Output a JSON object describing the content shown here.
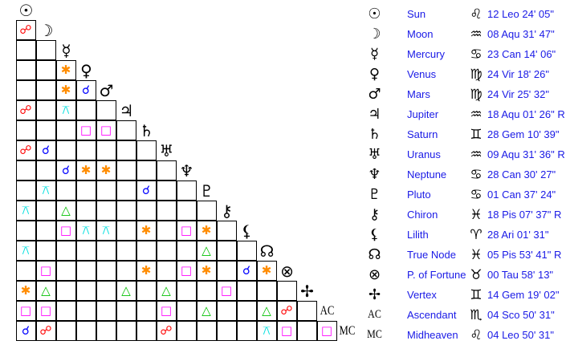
{
  "planets": [
    {
      "name": "Sun",
      "glyph": "☉",
      "sign_glyph": "♌",
      "position": "12 Leo 24' 05\""
    },
    {
      "name": "Moon",
      "glyph": "☽",
      "sign_glyph": "♒",
      "position": "08 Aqu 31' 47\""
    },
    {
      "name": "Mercury",
      "glyph": "☿",
      "sign_glyph": "♋",
      "position": "23 Can 14' 06\""
    },
    {
      "name": "Venus",
      "glyph": "♀",
      "sign_glyph": "♍",
      "position": "24 Vir 18' 26\""
    },
    {
      "name": "Mars",
      "glyph": "♂",
      "sign_glyph": "♍",
      "position": "24 Vir 25' 32\""
    },
    {
      "name": "Jupiter",
      "glyph": "♃",
      "sign_glyph": "♒",
      "position": "18 Aqu 01' 26\" R"
    },
    {
      "name": "Saturn",
      "glyph": "♄",
      "sign_glyph": "♊",
      "position": "28 Gem 10' 39\""
    },
    {
      "name": "Uranus",
      "glyph": "♅",
      "sign_glyph": "♒",
      "position": "09 Aqu 31' 36\" R"
    },
    {
      "name": "Neptune",
      "glyph": "♆",
      "sign_glyph": "♋",
      "position": "28 Can 30' 27\""
    },
    {
      "name": "Pluto",
      "glyph": "♇",
      "sign_glyph": "♋",
      "position": "01 Can 37' 24\""
    },
    {
      "name": "Chiron",
      "glyph": "⚷",
      "sign_glyph": "♓",
      "position": "18 Pis 07' 37\" R"
    },
    {
      "name": "Lilith",
      "glyph": "⚸",
      "sign_glyph": "♈",
      "position": "28 Ari 01' 31\""
    },
    {
      "name": "True Node",
      "glyph": "☊",
      "sign_glyph": "♓",
      "position": "05 Pis 53' 41\" R"
    },
    {
      "name": "P. of Fortune",
      "glyph": "⊗",
      "sign_glyph": "♉",
      "position": "00 Tau 58' 13\""
    },
    {
      "name": "Vertex",
      "glyph": "✢",
      "sign_glyph": "♊",
      "position": "14 Gem 19' 02\""
    },
    {
      "name": "Ascendant",
      "glyph": "AC",
      "sign_glyph": "♏",
      "position": "04 Sco 50' 31\""
    },
    {
      "name": "Midheaven",
      "glyph": "MC",
      "sign_glyph": "♌",
      "position": "04 Leo 50' 31\""
    }
  ],
  "aspect_types": {
    "opposition": {
      "glyph": "☍",
      "color": "#ff0000"
    },
    "conjunction": {
      "glyph": "☌",
      "color": "#0000ff"
    },
    "sextile": {
      "glyph": "✱",
      "color": "#ff8c00"
    },
    "square": {
      "glyph": "□",
      "color": "#ff00ff"
    },
    "trine": {
      "glyph": "△",
      "color": "#00c000"
    },
    "quincunx": {
      "glyph": "⚻",
      "color": "#00e0e0"
    }
  },
  "aspects": [
    {
      "row": 1,
      "col": 0,
      "type": "opposition"
    },
    {
      "row": 3,
      "col": 2,
      "type": "sextile"
    },
    {
      "row": 4,
      "col": 2,
      "type": "sextile"
    },
    {
      "row": 4,
      "col": 3,
      "type": "conjunction"
    },
    {
      "row": 5,
      "col": 0,
      "type": "opposition"
    },
    {
      "row": 5,
      "col": 2,
      "type": "quincunx"
    },
    {
      "row": 6,
      "col": 3,
      "type": "square"
    },
    {
      "row": 6,
      "col": 4,
      "type": "square"
    },
    {
      "row": 7,
      "col": 0,
      "type": "opposition"
    },
    {
      "row": 7,
      "col": 1,
      "type": "conjunction"
    },
    {
      "row": 8,
      "col": 2,
      "type": "conjunction"
    },
    {
      "row": 8,
      "col": 3,
      "type": "sextile"
    },
    {
      "row": 8,
      "col": 4,
      "type": "sextile"
    },
    {
      "row": 9,
      "col": 1,
      "type": "quincunx"
    },
    {
      "row": 9,
      "col": 6,
      "type": "conjunction"
    },
    {
      "row": 10,
      "col": 0,
      "type": "quincunx"
    },
    {
      "row": 10,
      "col": 2,
      "type": "trine"
    },
    {
      "row": 11,
      "col": 2,
      "type": "square"
    },
    {
      "row": 11,
      "col": 3,
      "type": "quincunx"
    },
    {
      "row": 11,
      "col": 4,
      "type": "quincunx"
    },
    {
      "row": 11,
      "col": 6,
      "type": "sextile"
    },
    {
      "row": 11,
      "col": 8,
      "type": "square"
    },
    {
      "row": 11,
      "col": 9,
      "type": "sextile"
    },
    {
      "row": 12,
      "col": 0,
      "type": "quincunx"
    },
    {
      "row": 12,
      "col": 9,
      "type": "trine"
    },
    {
      "row": 13,
      "col": 1,
      "type": "square"
    },
    {
      "row": 13,
      "col": 6,
      "type": "sextile"
    },
    {
      "row": 13,
      "col": 8,
      "type": "square"
    },
    {
      "row": 13,
      "col": 9,
      "type": "sextile"
    },
    {
      "row": 13,
      "col": 11,
      "type": "conjunction"
    },
    {
      "row": 13,
      "col": 12,
      "type": "sextile"
    },
    {
      "row": 14,
      "col": 0,
      "type": "sextile"
    },
    {
      "row": 14,
      "col": 1,
      "type": "trine"
    },
    {
      "row": 14,
      "col": 5,
      "type": "trine"
    },
    {
      "row": 14,
      "col": 7,
      "type": "trine"
    },
    {
      "row": 14,
      "col": 10,
      "type": "square"
    },
    {
      "row": 15,
      "col": 0,
      "type": "square"
    },
    {
      "row": 15,
      "col": 1,
      "type": "square"
    },
    {
      "row": 15,
      "col": 7,
      "type": "square"
    },
    {
      "row": 15,
      "col": 9,
      "type": "trine"
    },
    {
      "row": 15,
      "col": 12,
      "type": "trine"
    },
    {
      "row": 15,
      "col": 13,
      "type": "opposition"
    },
    {
      "row": 16,
      "col": 0,
      "type": "conjunction"
    },
    {
      "row": 16,
      "col": 1,
      "type": "opposition"
    },
    {
      "row": 16,
      "col": 7,
      "type": "opposition"
    },
    {
      "row": 16,
      "col": 12,
      "type": "quincunx"
    },
    {
      "row": 16,
      "col": 13,
      "type": "square"
    },
    {
      "row": 16,
      "col": 15,
      "type": "square"
    }
  ]
}
